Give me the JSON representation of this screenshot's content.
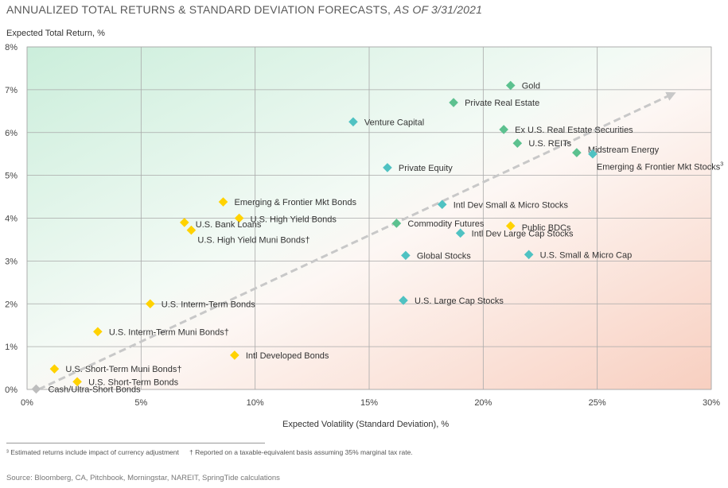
{
  "title": {
    "main": "ANNUALIZED TOTAL RETURNS & STANDARD DEVIATION FORECASTS, ",
    "date": "AS OF 3/31/2021"
  },
  "chart_data": {
    "type": "scatter",
    "ylabel": "Expected Total Return, %",
    "xlabel": "Expected Volatility (Standard Deviation), %",
    "xlim": [
      0,
      30
    ],
    "ylim": [
      0,
      8
    ],
    "x_ticks": [
      "0%",
      "5%",
      "10%",
      "15%",
      "20%",
      "25%",
      "30%"
    ],
    "y_ticks": [
      "0%",
      "1%",
      "2%",
      "3%",
      "4%",
      "5%",
      "6%",
      "7%",
      "8%"
    ],
    "grid": true,
    "trend_arrow": {
      "from": [
        0.5,
        0.0
      ],
      "to": [
        28.3,
        6.9
      ]
    },
    "colors": {
      "yellow": "#ffd200",
      "green": "#5cc18f",
      "teal": "#4fc2c2",
      "neutral": "#bdbdbd"
    },
    "points": [
      {
        "label": "Gold",
        "x": 21.2,
        "y": 7.1,
        "color": "green"
      },
      {
        "label": "Private Real Estate",
        "x": 18.7,
        "y": 6.7,
        "color": "green"
      },
      {
        "label": "Venture Capital",
        "x": 14.3,
        "y": 6.25,
        "color": "teal"
      },
      {
        "label": "Ex U.S. Real Estate Securities",
        "x": 20.9,
        "y": 6.07,
        "color": "green"
      },
      {
        "label": "U.S. REITs",
        "x": 21.5,
        "y": 5.75,
        "color": "green"
      },
      {
        "label": "Midstream Energy",
        "x": 24.1,
        "y": 5.53,
        "color": "green"
      },
      {
        "label": "Emerging & Frontier Mkt Stocks",
        "sup": "3",
        "x": 24.8,
        "y": 5.5,
        "color": "teal"
      },
      {
        "label": "Private Equity",
        "x": 15.8,
        "y": 5.18,
        "color": "teal"
      },
      {
        "label": "Emerging & Frontier Mkt Bonds",
        "x": 8.6,
        "y": 4.38,
        "color": "yellow"
      },
      {
        "label": "Intl Dev Small & Micro Stocks",
        "x": 18.2,
        "y": 4.32,
        "color": "teal"
      },
      {
        "label": "U.S. High Yield Bonds",
        "x": 9.3,
        "y": 4.0,
        "color": "yellow"
      },
      {
        "label": "U.S. Bank Loans",
        "x": 6.9,
        "y": 3.9,
        "color": "yellow"
      },
      {
        "label": "Commodity Futures",
        "x": 16.2,
        "y": 3.88,
        "color": "green"
      },
      {
        "label": "Public BDCs",
        "x": 21.2,
        "y": 3.82,
        "color": "yellow"
      },
      {
        "label": "U.S. High Yield Muni Bonds†",
        "x": 7.2,
        "y": 3.72,
        "color": "yellow"
      },
      {
        "label": "Intl Dev Large Cap Stocks",
        "x": 19.0,
        "y": 3.65,
        "color": "teal"
      },
      {
        "label": "Global Stocks",
        "x": 16.6,
        "y": 3.13,
        "color": "teal"
      },
      {
        "label": "U.S. Small & Micro Cap",
        "x": 22.0,
        "y": 3.15,
        "color": "teal"
      },
      {
        "label": "U.S. Large Cap Stocks",
        "x": 16.5,
        "y": 2.08,
        "color": "teal"
      },
      {
        "label": "U.S. Interm-Term Bonds",
        "x": 5.4,
        "y": 2.0,
        "color": "yellow"
      },
      {
        "label": "U.S. Interm-Term Muni Bonds†",
        "x": 3.1,
        "y": 1.35,
        "color": "yellow"
      },
      {
        "label": "Intl Developed Bonds",
        "x": 9.1,
        "y": 0.8,
        "color": "yellow"
      },
      {
        "label": "U.S. Short-Term Muni Bonds†",
        "x": 1.2,
        "y": 0.48,
        "color": "yellow"
      },
      {
        "label": "U.S. Short-Term Bonds",
        "x": 2.2,
        "y": 0.18,
        "color": "yellow"
      },
      {
        "label": "Cash/Ultra-Short Bonds",
        "x": 0.4,
        "y": 0.01,
        "color": "neutral"
      }
    ]
  },
  "footnotes": {
    "estimated": "³ Estimated returns include impact of currency adjustment",
    "taxable": "† Reported on a taxable-equivalent basis assuming 35% marginal tax rate.",
    "source": "Source: Bloomberg, CA, Pitchbook, Morningstar, NAREIT, SpringTide calculations"
  }
}
